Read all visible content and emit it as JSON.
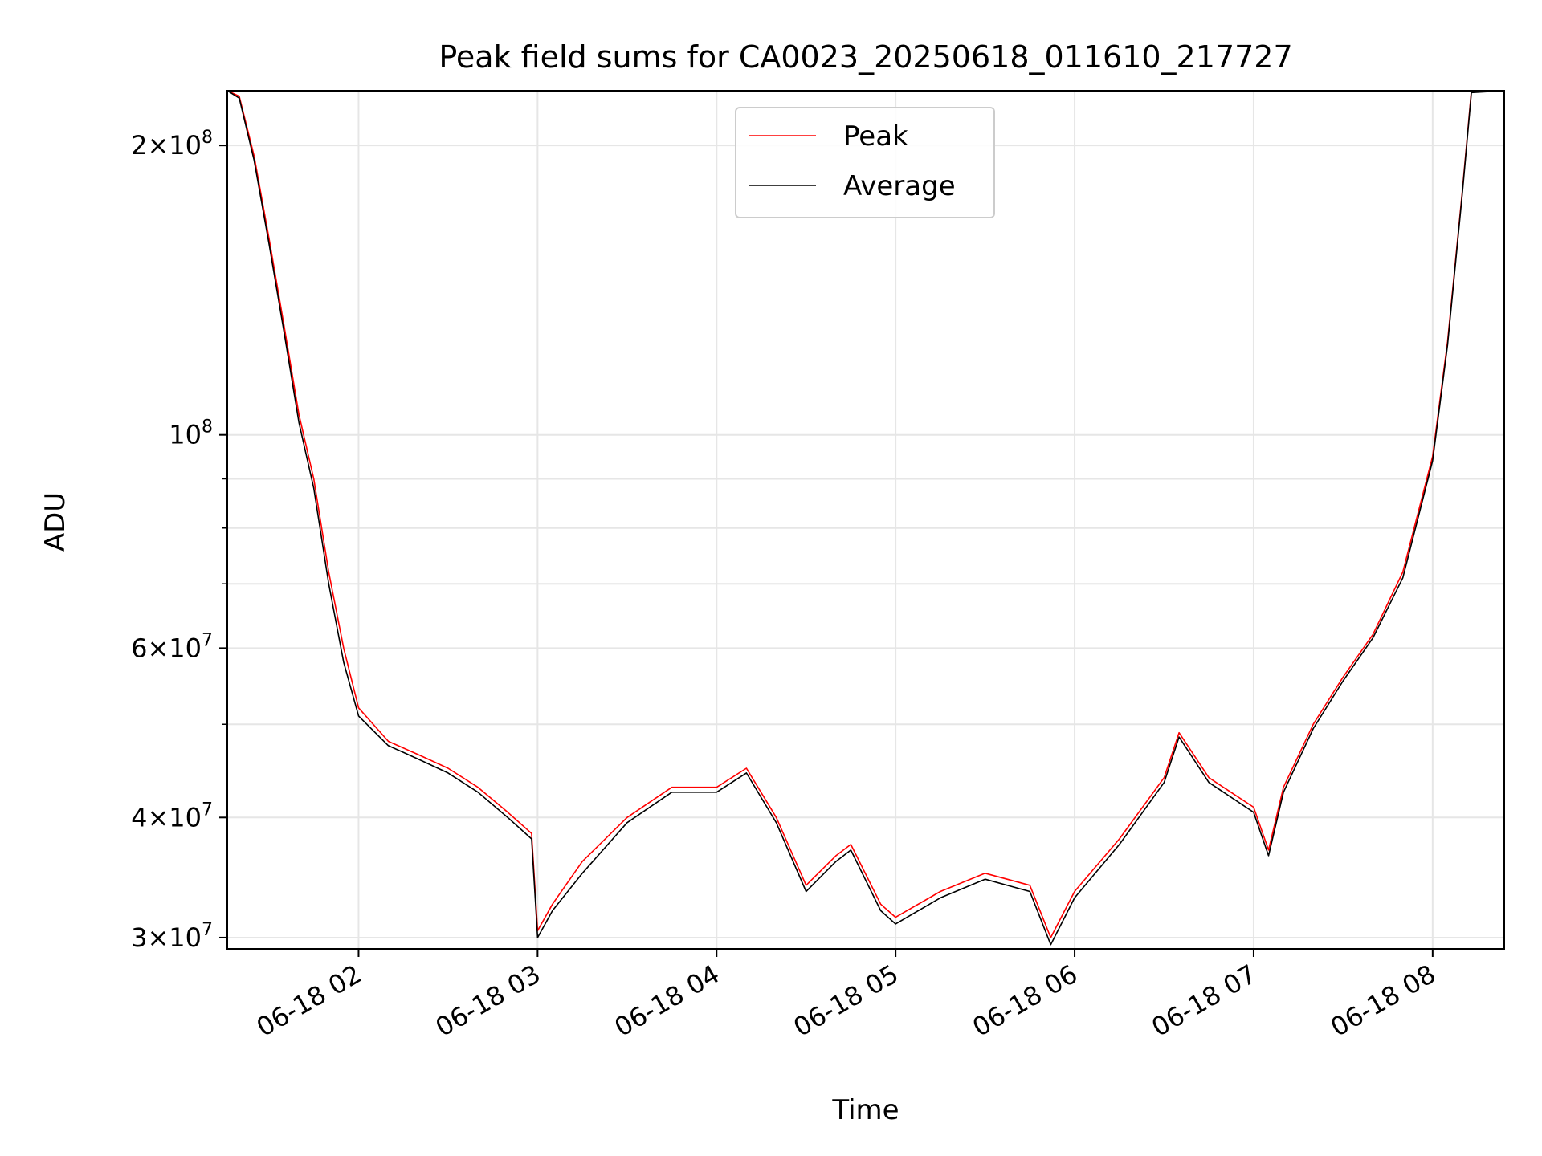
{
  "chart_data": {
    "type": "line",
    "title": "Peak field sums for CA0023_20250618_011610_217727",
    "xlabel": "Time",
    "ylabel": "ADU",
    "yscale": "log",
    "xlim": [
      "2025-06-18 01:16",
      "2025-06-18 08:24"
    ],
    "ylim": [
      29200000,
      228000000
    ],
    "x_ticks": [
      "06-18 02",
      "06-18 03",
      "06-18 04",
      "06-18 05",
      "06-18 06",
      "06-18 07",
      "06-18 08"
    ],
    "x_tick_times": [
      "2025-06-18 02:00",
      "2025-06-18 03:00",
      "2025-06-18 04:00",
      "2025-06-18 05:00",
      "2025-06-18 06:00",
      "2025-06-18 07:00",
      "2025-06-18 08:00"
    ],
    "y_ticks": [
      {
        "value": 30000000,
        "mantissa": "3",
        "exp": "7"
      },
      {
        "value": 40000000,
        "mantissa": "4",
        "exp": "7"
      },
      {
        "value": 60000000,
        "mantissa": "6",
        "exp": "7"
      },
      {
        "value": 100000000,
        "mantissa": "",
        "exp": "8"
      },
      {
        "value": 200000000,
        "mantissa": "2",
        "exp": "8"
      }
    ],
    "y_minor_ticks": [
      50000000,
      70000000,
      80000000,
      90000000
    ],
    "grid": true,
    "legend_position": "top-center",
    "x": [
      "2025-06-18 01:16",
      "2025-06-18 01:20",
      "2025-06-18 01:25",
      "2025-06-18 01:30",
      "2025-06-18 01:35",
      "2025-06-18 01:40",
      "2025-06-18 01:45",
      "2025-06-18 01:50",
      "2025-06-18 01:55",
      "2025-06-18 02:00",
      "2025-06-18 02:10",
      "2025-06-18 02:20",
      "2025-06-18 02:30",
      "2025-06-18 02:40",
      "2025-06-18 02:50",
      "2025-06-18 02:58",
      "2025-06-18 03:00",
      "2025-06-18 03:05",
      "2025-06-18 03:15",
      "2025-06-18 03:30",
      "2025-06-18 03:45",
      "2025-06-18 04:00",
      "2025-06-18 04:10",
      "2025-06-18 04:20",
      "2025-06-18 04:30",
      "2025-06-18 04:40",
      "2025-06-18 04:45",
      "2025-06-18 04:55",
      "2025-06-18 05:00",
      "2025-06-18 05:15",
      "2025-06-18 05:30",
      "2025-06-18 05:45",
      "2025-06-18 05:52",
      "2025-06-18 06:00",
      "2025-06-18 06:15",
      "2025-06-18 06:30",
      "2025-06-18 06:35",
      "2025-06-18 06:45",
      "2025-06-18 07:00",
      "2025-06-18 07:05",
      "2025-06-18 07:10",
      "2025-06-18 07:20",
      "2025-06-18 07:30",
      "2025-06-18 07:40",
      "2025-06-18 07:50",
      "2025-06-18 08:00",
      "2025-06-18 08:05",
      "2025-06-18 08:10",
      "2025-06-18 08:13",
      "2025-06-18 08:24"
    ],
    "series": [
      {
        "name": "Peak",
        "color": "#ff0000",
        "values": [
          228000000,
          225000000,
          195000000,
          160000000,
          130000000,
          105000000,
          90000000,
          72000000,
          60000000,
          52000000,
          48000000,
          46500000,
          45000000,
          43000000,
          40500000,
          38500000,
          30500000,
          32500000,
          36000000,
          40000000,
          43000000,
          43000000,
          45000000,
          40000000,
          34000000,
          36500000,
          37500000,
          32500000,
          31500000,
          33500000,
          35000000,
          34000000,
          30000000,
          33500000,
          38000000,
          44000000,
          49000000,
          44000000,
          41000000,
          37000000,
          43000000,
          50000000,
          56000000,
          62000000,
          72000000,
          95000000,
          125000000,
          180000000,
          228000000,
          228000000
        ]
      },
      {
        "name": "Average",
        "color": "#000000",
        "values": [
          228000000,
          224000000,
          193000000,
          158000000,
          128000000,
          103000000,
          88000000,
          70000000,
          58000000,
          51000000,
          47500000,
          46000000,
          44500000,
          42500000,
          40000000,
          38000000,
          30000000,
          32000000,
          35000000,
          39500000,
          42500000,
          42500000,
          44500000,
          39500000,
          33500000,
          36000000,
          37000000,
          32000000,
          31000000,
          33000000,
          34500000,
          33500000,
          29500000,
          33000000,
          37500000,
          43500000,
          48500000,
          43500000,
          40500000,
          36500000,
          42500000,
          49500000,
          55500000,
          61500000,
          71000000,
          94000000,
          124000000,
          179000000,
          227000000,
          228000000
        ]
      }
    ]
  }
}
